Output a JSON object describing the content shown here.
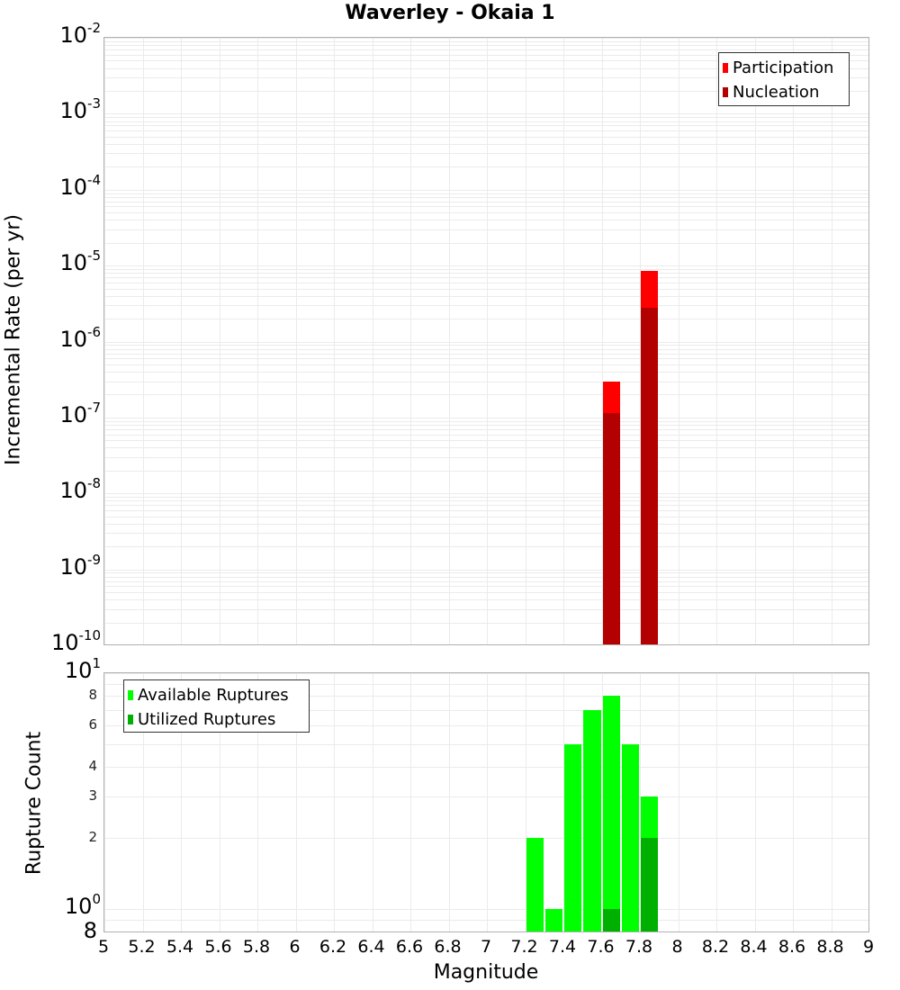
{
  "title": "Waverley - Okaia 1",
  "xaxis": {
    "label": "Magnitude",
    "min": 5,
    "max": 9,
    "ticks": [
      "5",
      "5.2",
      "5.4",
      "5.6",
      "5.8",
      "6",
      "6.2",
      "6.4",
      "6.6",
      "6.8",
      "7",
      "7.2",
      "7.4",
      "7.6",
      "7.8",
      "8",
      "8.2",
      "8.4",
      "8.6",
      "8.8",
      "9"
    ]
  },
  "top_chart": {
    "ylabel": "Incremental Rate (per yr)",
    "ytick_base": "10",
    "ytick_exponents": [
      "-2",
      "-3",
      "-4",
      "-5",
      "-6",
      "-7",
      "-8",
      "-9",
      "-10"
    ],
    "legend": [
      {
        "label": "Participation",
        "color": "#ff0000"
      },
      {
        "label": "Nucleation",
        "color": "#b30000"
      }
    ]
  },
  "bottom_chart": {
    "ylabel": "Rupture Count",
    "ytick_decades": [
      {
        "base": "10",
        "exp": "1"
      },
      {
        "base": "10",
        "exp": "0"
      }
    ],
    "ytick_minor": [
      "8",
      "6",
      "4",
      "3",
      "2",
      "8"
    ],
    "legend": [
      {
        "label": "Available Ruptures",
        "color": "#00ff00"
      },
      {
        "label": "Utilized Ruptures",
        "color": "#00b000"
      }
    ]
  },
  "chart_data": [
    {
      "type": "bar",
      "title": "Waverley - Okaia 1",
      "xlabel": "Magnitude",
      "ylabel": "Incremental Rate (per yr)",
      "yscale": "log",
      "xlim": [
        5,
        9
      ],
      "ylim": [
        1e-10,
        0.01
      ],
      "grid": true,
      "legend_position": "top-right",
      "x": [
        7.65,
        7.85
      ],
      "series": [
        {
          "name": "Participation",
          "color": "#ff0000",
          "values": [
            3e-07,
            8.5e-06
          ]
        },
        {
          "name": "Nucleation",
          "color": "#b30000",
          "values": [
            1.15e-07,
            2.8e-06
          ]
        }
      ]
    },
    {
      "type": "bar",
      "title": "",
      "xlabel": "Magnitude",
      "ylabel": "Rupture Count",
      "yscale": "log",
      "xlim": [
        5,
        9
      ],
      "ylim": [
        0.8,
        10
      ],
      "grid": true,
      "legend_position": "top-left",
      "x": [
        7.25,
        7.35,
        7.45,
        7.55,
        7.65,
        7.75,
        7.85
      ],
      "series": [
        {
          "name": "Available Ruptures",
          "color": "#00ff00",
          "values": [
            2,
            1,
            5,
            7,
            8,
            5,
            3
          ]
        },
        {
          "name": "Utilized Ruptures",
          "color": "#00b000",
          "values": [
            0,
            0,
            0,
            0,
            1,
            0,
            2
          ]
        }
      ]
    }
  ]
}
